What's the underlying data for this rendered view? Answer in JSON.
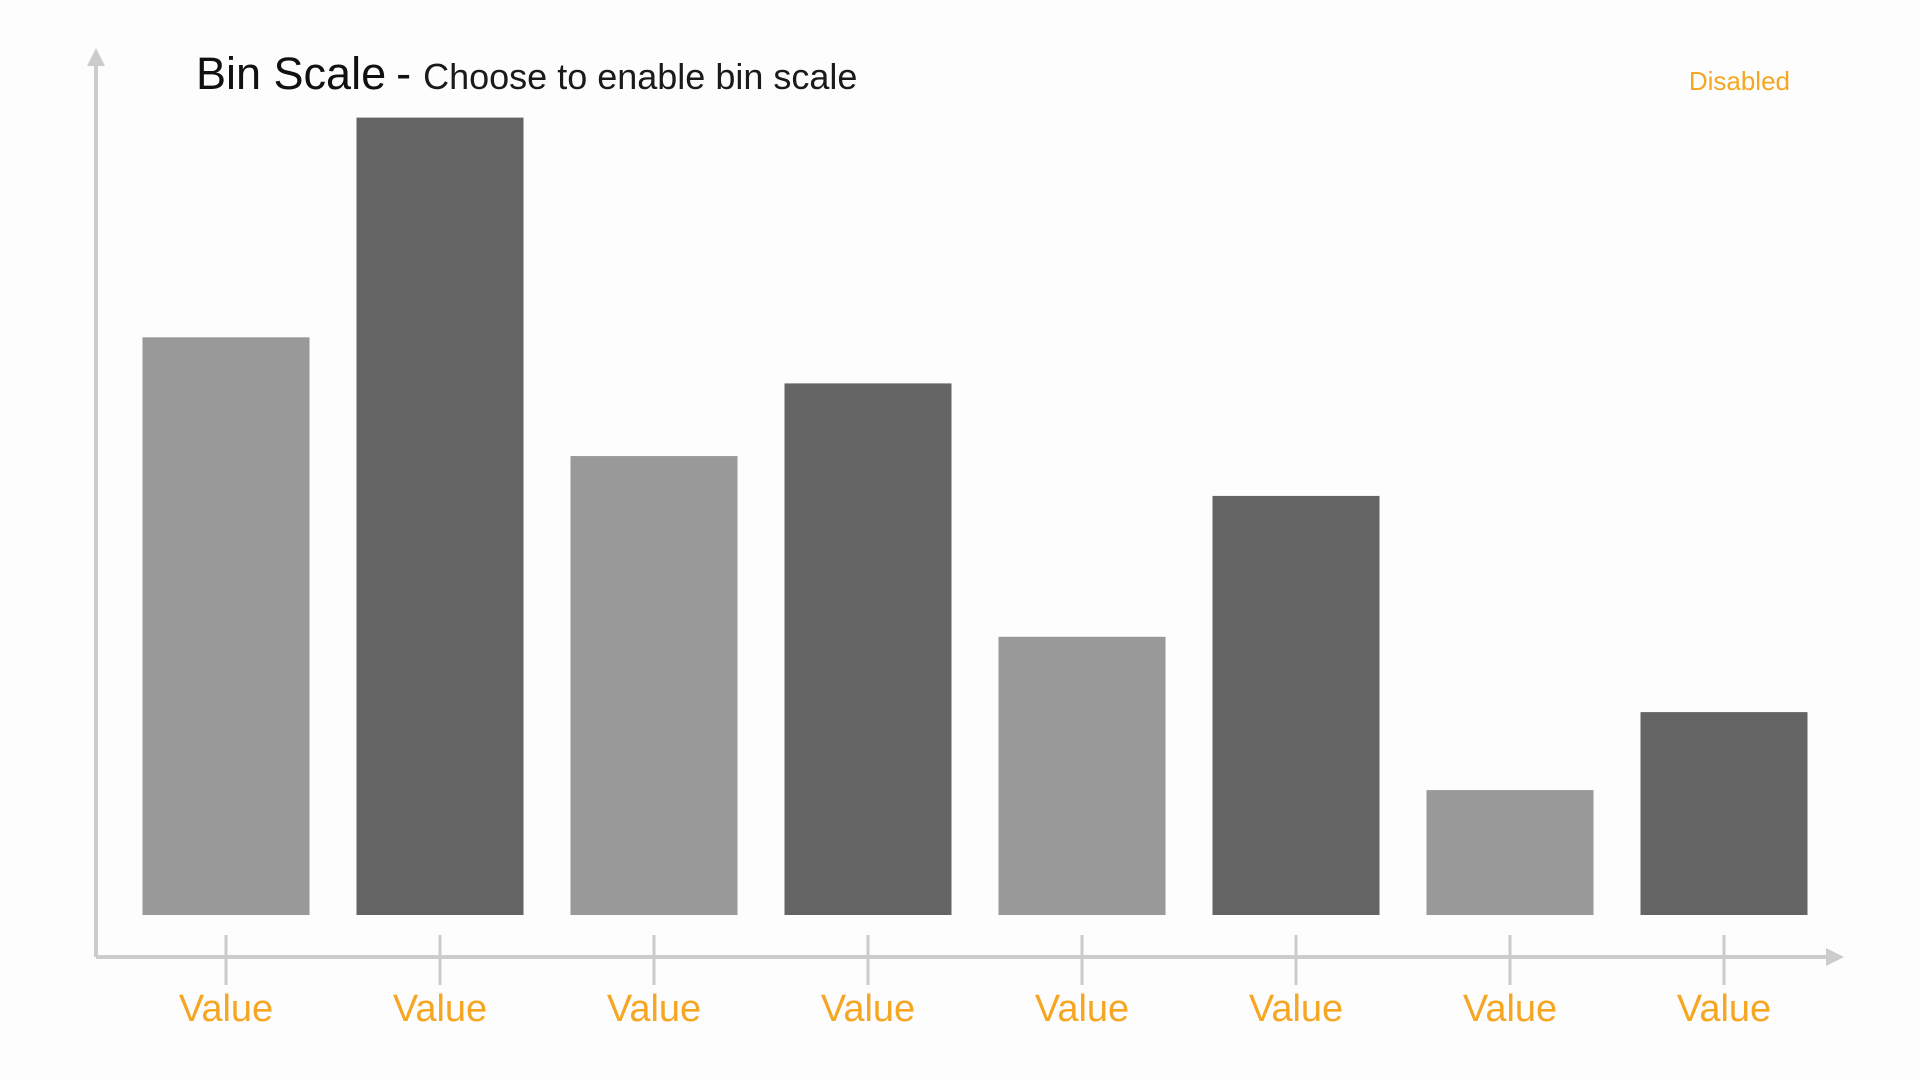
{
  "header": {
    "title": "Bin Scale",
    "separator": "-",
    "subtitle": "Choose to enable bin scale",
    "status": "Disabled"
  },
  "colors": {
    "accent": "#F5A623",
    "bar_light": "#999999",
    "bar_dark": "#646464",
    "axis": "#cccccc",
    "background": "#fdfdfd"
  },
  "chart_data": {
    "type": "bar",
    "title": "Bin Scale",
    "subtitle": "Choose to enable bin scale",
    "categories": [
      "Value",
      "Value",
      "Value",
      "Value",
      "Value",
      "Value",
      "Value",
      "Value"
    ],
    "values": [
      0.652,
      0.9,
      0.518,
      0.6,
      0.314,
      0.473,
      0.141,
      0.229
    ],
    "value_scale": "fraction of tallest bar = 0.9",
    "bar_shades": [
      "light",
      "dark",
      "light",
      "dark",
      "light",
      "dark",
      "light",
      "dark"
    ],
    "ylim": [
      0,
      1
    ],
    "xlabel": "",
    "ylabel": "",
    "grid": false,
    "legend": "none"
  }
}
